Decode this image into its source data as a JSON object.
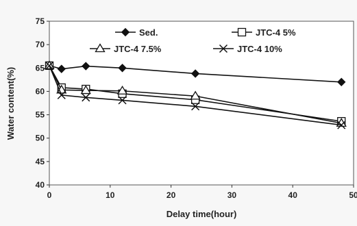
{
  "chart_data": {
    "type": "line",
    "xlabel": "Delay time(hour)",
    "ylabel": "Water content(%)",
    "xlim": [
      0,
      50
    ],
    "ylim": [
      40,
      75
    ],
    "xticks": [
      0,
      10,
      20,
      30,
      40,
      50
    ],
    "yticks": [
      40,
      45,
      50,
      55,
      60,
      65,
      70,
      75
    ],
    "grid": false,
    "legend_position": "top",
    "series": [
      {
        "name": "Sed.",
        "marker": "filled-diamond",
        "x": [
          0,
          2,
          6,
          12,
          24,
          48
        ],
        "y": [
          65.5,
          64.8,
          65.4,
          65.0,
          63.8,
          62.0
        ]
      },
      {
        "name": "JTC-4 5%",
        "marker": "open-square",
        "x": [
          0,
          2,
          6,
          12,
          24,
          48
        ],
        "y": [
          65.5,
          60.8,
          60.5,
          59.5,
          58.2,
          53.6
        ]
      },
      {
        "name": "JTC-4 7.5%",
        "marker": "open-triangle",
        "x": [
          0,
          2,
          6,
          12,
          24,
          48
        ],
        "y": [
          65.5,
          60.3,
          60.2,
          60.1,
          59.0,
          53.2
        ]
      },
      {
        "name": "JTC-4 10%",
        "marker": "x-cross",
        "x": [
          0,
          2,
          6,
          12,
          24,
          48
        ],
        "y": [
          65.5,
          59.2,
          58.7,
          58.1,
          56.8,
          52.8
        ]
      }
    ],
    "colors": {
      "line": "#111111",
      "background": "#f7f7f7",
      "plot_area": "#ffffff"
    }
  }
}
